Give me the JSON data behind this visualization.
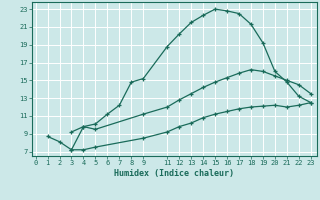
{
  "xlabel": "Humidex (Indice chaleur)",
  "bg_color": "#cce8e8",
  "grid_color": "#aacccc",
  "line_color": "#1a6b5a",
  "line1_x": [
    1,
    2,
    3,
    4,
    5,
    6,
    7,
    8,
    9,
    11,
    12,
    13,
    14,
    15,
    16,
    17,
    18,
    19,
    20,
    21,
    22,
    23
  ],
  "line1_y": [
    8.7,
    8.1,
    7.2,
    9.8,
    10.1,
    11.2,
    12.2,
    14.8,
    15.2,
    18.8,
    20.2,
    21.5,
    22.3,
    23.0,
    22.8,
    22.5,
    21.3,
    19.2,
    16.0,
    14.8,
    13.2,
    12.5
  ],
  "line2_x": [
    3,
    4,
    5,
    9,
    11,
    12,
    13,
    14,
    15,
    16,
    17,
    18,
    19,
    20,
    21,
    22,
    23
  ],
  "line2_y": [
    9.2,
    9.8,
    9.5,
    11.2,
    12.0,
    12.8,
    13.5,
    14.2,
    14.8,
    15.3,
    15.8,
    16.2,
    16.0,
    15.5,
    15.0,
    14.5,
    13.5
  ],
  "line3_x": [
    3,
    4,
    5,
    9,
    11,
    12,
    13,
    14,
    15,
    16,
    17,
    18,
    19,
    20,
    21,
    22,
    23
  ],
  "line3_y": [
    7.2,
    7.2,
    7.5,
    8.5,
    9.2,
    9.8,
    10.2,
    10.8,
    11.2,
    11.5,
    11.8,
    12.0,
    12.1,
    12.2,
    12.0,
    12.2,
    12.5
  ],
  "xlim": [
    -0.3,
    23.5
  ],
  "ylim": [
    6.5,
    23.8
  ],
  "yticks": [
    7,
    9,
    11,
    13,
    15,
    17,
    19,
    21,
    23
  ],
  "xticks": [
    0,
    1,
    2,
    3,
    4,
    5,
    6,
    7,
    8,
    9,
    11,
    12,
    13,
    14,
    15,
    16,
    17,
    18,
    19,
    20,
    21,
    22,
    23
  ],
  "xtick_labels": [
    "0",
    "1",
    "2",
    "3",
    "4",
    "5",
    "6",
    "7",
    "8",
    "9",
    "11",
    "12",
    "13",
    "14",
    "15",
    "16",
    "17",
    "18",
    "19",
    "20",
    "21",
    "22",
    "23"
  ]
}
